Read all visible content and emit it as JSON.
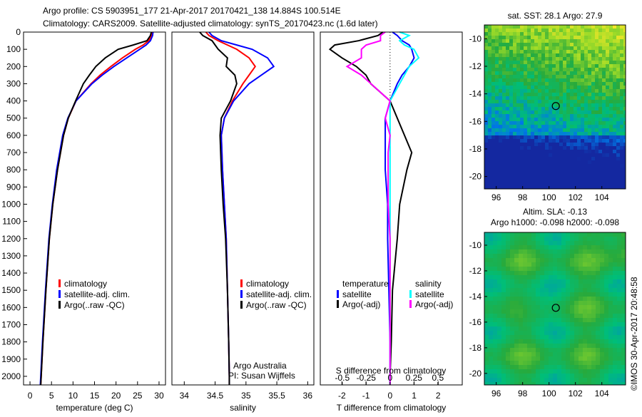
{
  "title_line1": "Argo profile: CS 5903951_177 21-Apr-2017 20170421_138 14.884S 100.514E",
  "title_line2": "Climatology: CARS2009. Satellite-adjusted climatology: synTS_20170423.nc (1.6d later)",
  "credit": "©IMOS 30-Apr-2017 20:48:58",
  "colors": {
    "climatology": "#ff0000",
    "satellite": "#0000ff",
    "argo": "#000000",
    "sal_satellite": "#00ffff",
    "sal_argo": "#ff00ff"
  },
  "chart_data": [
    {
      "type": "line",
      "name": "temperature",
      "xlabel": "temperature (deg C)",
      "xlim": [
        -1.5,
        31.5
      ],
      "ylim": [
        2050,
        0
      ],
      "xticks": [
        0,
        5,
        10,
        15,
        20,
        25,
        30
      ],
      "yticks": [
        0,
        100,
        200,
        300,
        400,
        500,
        600,
        700,
        800,
        900,
        1000,
        1100,
        1200,
        1300,
        1400,
        1500,
        1600,
        1700,
        1800,
        1900,
        2000
      ],
      "legend": [
        "climatology",
        "satellite-adj. clim.",
        "Argo(..raw -QC)"
      ],
      "depth": [
        0,
        20,
        50,
        75,
        100,
        150,
        200,
        250,
        300,
        400,
        500,
        600,
        800,
        1000,
        1200,
        1500,
        1800,
        2000,
        2050
      ],
      "series": [
        {
          "name": "climatology",
          "values": [
            28.5,
            28.3,
            27.6,
            26.3,
            24.5,
            21.5,
            18.8,
            16.3,
            14.2,
            10.7,
            8.9,
            7.8,
            6.4,
            5.3,
            4.5,
            3.7,
            3.0,
            2.6,
            2.5
          ]
        },
        {
          "name": "satellite-adj. clim.",
          "values": [
            28.6,
            28.5,
            28.0,
            27.0,
            25.5,
            22.5,
            19.5,
            16.8,
            14.4,
            10.7,
            8.8,
            7.6,
            6.2,
            5.2,
            4.4,
            3.6,
            2.9,
            2.5,
            2.4
          ]
        },
        {
          "name": "Argo(..raw -QC)",
          "values": [
            28.2,
            28.0,
            27.2,
            24.0,
            20.5,
            17.5,
            15.3,
            13.8,
            12.4,
            10.6,
            8.9,
            7.8,
            6.4,
            5.3,
            4.5,
            3.7,
            3.0,
            2.6,
            2.5
          ]
        }
      ]
    },
    {
      "type": "line",
      "name": "salinity",
      "xlabel": "salinity",
      "xlim": [
        33.8,
        36.1
      ],
      "ylim": [
        2050,
        0
      ],
      "xticks": [
        34,
        34.5,
        35,
        35.5,
        36
      ],
      "legend": [
        "climatology",
        "satellite-adj. clim.",
        "Argo(..raw -QC)"
      ],
      "annotation": [
        "Argo Australia",
        "PI: Susan Wijffels"
      ],
      "depth": [
        0,
        20,
        50,
        75,
        100,
        150,
        200,
        250,
        300,
        400,
        500,
        600,
        800,
        1000,
        1200,
        1500,
        1800,
        2000,
        2050
      ],
      "series": [
        {
          "name": "climatology",
          "values": [
            34.35,
            34.4,
            34.55,
            34.7,
            34.85,
            35.05,
            35.15,
            35.05,
            34.95,
            34.78,
            34.65,
            34.6,
            34.62,
            34.65,
            34.68,
            34.7,
            34.72,
            34.73,
            34.73
          ]
        },
        {
          "name": "satellite-adj. clim.",
          "values": [
            34.4,
            34.45,
            34.6,
            34.85,
            35.1,
            35.35,
            35.45,
            35.25,
            35.05,
            34.8,
            34.65,
            34.6,
            34.62,
            34.65,
            34.68,
            34.7,
            34.72,
            34.73,
            34.73
          ]
        },
        {
          "name": "Argo(..raw -QC)",
          "values": [
            34.25,
            34.3,
            34.45,
            34.5,
            34.55,
            34.7,
            34.68,
            34.82,
            34.85,
            34.75,
            34.6,
            34.58,
            34.6,
            34.63,
            34.67,
            34.7,
            34.72,
            34.73,
            34.73
          ]
        }
      ]
    },
    {
      "type": "line",
      "name": "differences",
      "xlabel": "T difference from climatology",
      "x2label": "S difference from climatology",
      "xlim": [
        -2.9,
        3.0
      ],
      "ylim": [
        2050,
        0
      ],
      "xticks": [
        -2,
        -1,
        0,
        1,
        2
      ],
      "x2ticks": [
        -0.5,
        -0.25,
        0,
        0.25,
        0.5
      ],
      "x2ticklabels": [
        "-0.5",
        "-0.25",
        "0",
        "0.25",
        "0.5"
      ],
      "legend_titles": [
        "temperature",
        "salinity"
      ],
      "legend": [
        "satellite",
        "Argo(-adj)",
        "satellite",
        "Argo(-adj)"
      ],
      "depth": [
        0,
        20,
        50,
        75,
        100,
        150,
        200,
        250,
        300,
        400,
        500,
        600,
        700,
        800,
        1000,
        1200,
        1500,
        1800,
        2000,
        2050
      ],
      "series": [
        {
          "name": "T satellite",
          "values": [
            0.1,
            0.3,
            0.5,
            0.8,
            0.9,
            1.0,
            0.8,
            0.5,
            0.3,
            0.0,
            -0.2,
            -0.2,
            -0.2,
            -0.2,
            -0.1,
            -0.1,
            -0.05,
            0,
            0,
            0
          ]
        },
        {
          "name": "T Argo(-adj)",
          "values": [
            -0.3,
            -0.5,
            -1.3,
            -2.3,
            -2.5,
            -2.0,
            -1.4,
            -1.0,
            -0.8,
            0.0,
            0.3,
            0.6,
            0.9,
            0.7,
            0.4,
            0.3,
            0.1,
            0.05,
            0,
            0
          ]
        },
        {
          "name": "S satellite",
          "values": [
            0.1,
            0.2,
            0.1,
            0.15,
            0.25,
            0.3,
            0.2,
            0.15,
            0.1,
            0.0,
            0.0,
            0.0,
            0.0,
            0.0,
            0.0,
            0.0,
            0.0,
            0.0,
            0.0,
            0.0
          ]
        },
        {
          "name": "S Argo(-adj)",
          "values": [
            -0.05,
            -0.1,
            -0.1,
            -0.25,
            -0.3,
            -0.3,
            -0.45,
            -0.3,
            -0.2,
            0.0,
            -0.05,
            0.0,
            -0.02,
            -0.02,
            -0.02,
            0.0,
            0.0,
            0.0,
            0.0,
            0.0
          ]
        }
      ]
    },
    {
      "type": "heatmap",
      "name": "sst-map",
      "title": "sat. SST: 28.1  Argo: 27.9",
      "xlim": [
        95.1,
        105.8
      ],
      "ylim": [
        -20.9,
        -9.0
      ],
      "xticks": [
        96,
        98,
        100,
        102,
        104
      ],
      "yticks": [
        -10,
        -12,
        -14,
        -16,
        -18,
        -20
      ],
      "marker": {
        "lon": 100.514,
        "lat": -14.884
      }
    },
    {
      "type": "heatmap",
      "name": "sla-map",
      "title": "Altim. SLA: -0.13",
      "subtitle": "Argo h1000: -0.098 h2000: -0.098",
      "xlim": [
        95.1,
        105.8
      ],
      "ylim": [
        -20.9,
        -9.0
      ],
      "xticks": [
        96,
        98,
        100,
        102,
        104
      ],
      "yticks": [
        -10,
        -12,
        -14,
        -16,
        -18,
        -20
      ],
      "marker": {
        "lon": 100.514,
        "lat": -14.884
      }
    }
  ]
}
